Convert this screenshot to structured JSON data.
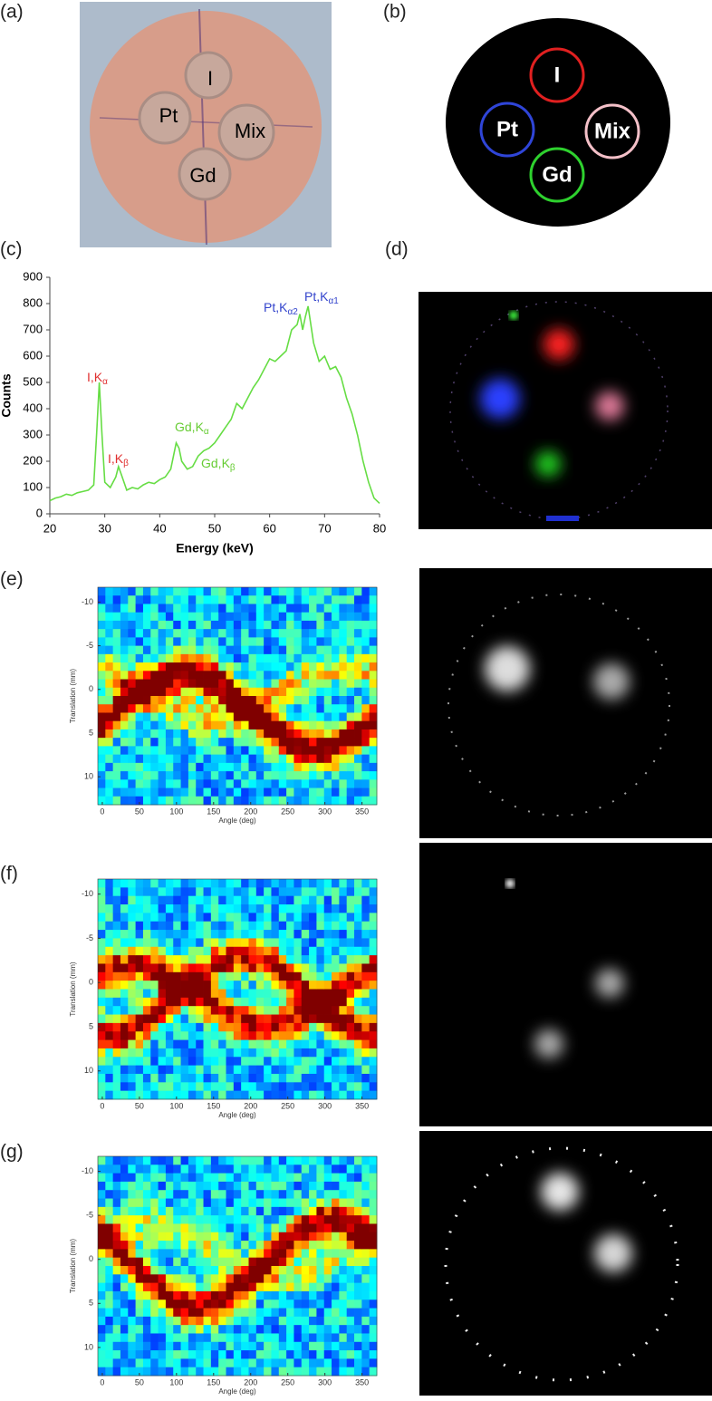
{
  "panel_labels": [
    "(a)",
    "(b)",
    "(c)",
    "(d)",
    "(e)",
    "(f)",
    "(g)"
  ],
  "photo": {
    "labels": [
      "I",
      "Pt",
      "Mix",
      "Gd"
    ]
  },
  "phantom": {
    "labels": [
      "I",
      "Pt",
      "Mix",
      "Gd"
    ],
    "colors": [
      "#e02020",
      "#2f45d8",
      "#f4c0c8",
      "#2ed12e"
    ]
  },
  "chart_data": [
    {
      "type": "line",
      "xlabel": "Energy (keV)",
      "ylabel": "Counts",
      "color": "#66dd44",
      "x": [
        20,
        21,
        22,
        23,
        24,
        25,
        26,
        27,
        28,
        28.5,
        29,
        29.5,
        30,
        31,
        32,
        32.5,
        33,
        34,
        35,
        36,
        37,
        38,
        39,
        40,
        41,
        42,
        43,
        43.5,
        44,
        45,
        46,
        47,
        48,
        49,
        50,
        51,
        52,
        53,
        54,
        55,
        56,
        57,
        58,
        59,
        60,
        61,
        62,
        63,
        64,
        65,
        65.5,
        66,
        66.5,
        67,
        68,
        69,
        70,
        71,
        72,
        73,
        74,
        75,
        76,
        77,
        78,
        79,
        80
      ],
      "values": [
        50,
        60,
        65,
        75,
        70,
        80,
        85,
        90,
        110,
        300,
        500,
        300,
        120,
        100,
        140,
        180,
        150,
        90,
        100,
        95,
        110,
        120,
        115,
        130,
        140,
        170,
        270,
        250,
        200,
        170,
        180,
        220,
        240,
        250,
        270,
        300,
        330,
        360,
        420,
        400,
        440,
        480,
        510,
        550,
        590,
        580,
        600,
        620,
        700,
        720,
        760,
        700,
        750,
        790,
        650,
        580,
        600,
        550,
        560,
        520,
        440,
        380,
        300,
        200,
        120,
        60,
        40
      ],
      "xlim": [
        20,
        80
      ],
      "ylim": [
        0,
        900
      ],
      "xticks": [
        20,
        30,
        40,
        50,
        60,
        70,
        80
      ],
      "yticks": [
        0,
        100,
        200,
        300,
        400,
        500,
        600,
        700,
        800,
        900
      ],
      "annotations": [
        {
          "text": "I,K",
          "sub": "α",
          "color": "#e03030"
        },
        {
          "text": "I,K",
          "sub": "β",
          "color": "#e03030"
        },
        {
          "text": "Gd,K",
          "sub": "α",
          "color": "#66cc33"
        },
        {
          "text": "Gd,K",
          "sub": "β",
          "color": "#66cc33"
        },
        {
          "text": "Pt,K",
          "sub": "α2",
          "color": "#3344cc"
        },
        {
          "text": "Pt,K",
          "sub": "α1",
          "color": "#3344cc"
        }
      ]
    },
    {
      "type": "heatmap",
      "xlabel": "Angle (deg)",
      "ylabel": "Translation (mm)",
      "xlim": [
        -6,
        370
      ],
      "ylim": [
        -11.7,
        13.2
      ],
      "y_inverted": true,
      "xticks": [
        0,
        50,
        100,
        150,
        200,
        250,
        300,
        350
      ],
      "yticks": [
        -10,
        -5,
        0,
        5,
        10
      ]
    },
    {
      "type": "heatmap",
      "xlabel": "Angle (deg)",
      "ylabel": "Translation (mm)",
      "xlim": [
        -6,
        370
      ],
      "ylim": [
        -11.7,
        13.2
      ],
      "y_inverted": true,
      "xticks": [
        0,
        50,
        100,
        150,
        200,
        250,
        300,
        350
      ],
      "yticks": [
        -10,
        -5,
        0,
        5,
        10
      ]
    },
    {
      "type": "heatmap",
      "xlabel": "Angle (deg)",
      "ylabel": "Translation (mm)",
      "xlim": [
        -6,
        370
      ],
      "ylim": [
        -11.7,
        13.2
      ],
      "y_inverted": true,
      "xticks": [
        0,
        50,
        100,
        150,
        200,
        250,
        300,
        350
      ],
      "yticks": [
        -10,
        -5,
        0,
        5,
        10
      ]
    }
  ]
}
